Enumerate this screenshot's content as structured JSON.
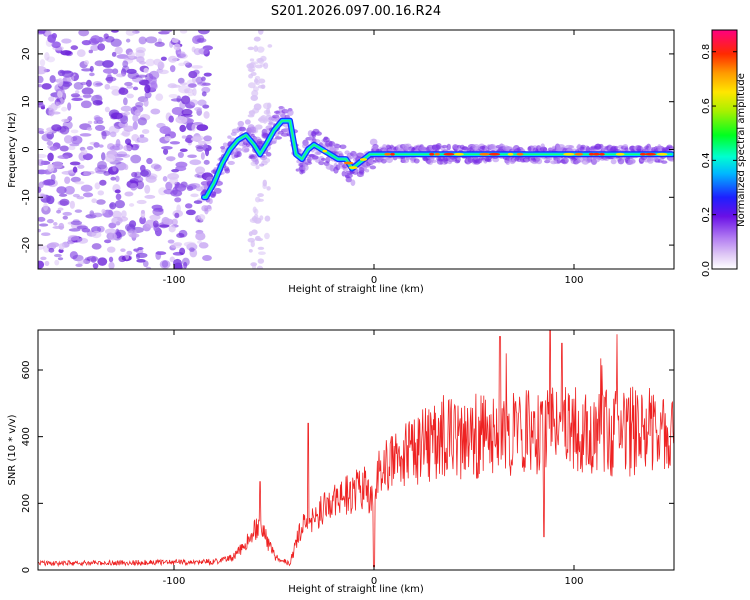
{
  "title": "S201.2026.097.00.16.R24",
  "chart_data": [
    {
      "type": "heatmap",
      "xlabel": "Height of straight line (km)",
      "ylabel": "Frequency (Hz)",
      "xlim": [
        -168,
        150
      ],
      "ylim": [
        -25,
        25
      ],
      "x_ticks": [
        -100,
        0,
        100
      ],
      "x_tick_labels": [
        "-100",
        "0",
        "100"
      ],
      "y_ticks": [
        -20,
        -10,
        0,
        10,
        20
      ],
      "y_tick_labels": [
        "-20",
        "-10",
        "0",
        "10",
        "20"
      ],
      "colorbar": {
        "label": "Normalized spectral amplitude",
        "range": [
          0,
          0.88
        ],
        "ticks": [
          0,
          0.2,
          0.4,
          0.6,
          0.8
        ],
        "tick_labels": [
          "0.0",
          "0.2",
          "0.4",
          "0.6",
          "0.8"
        ]
      },
      "ridge": {
        "x": [
          -84,
          -80,
          -76,
          -72,
          -68,
          -64,
          -60,
          -57,
          -54,
          -50,
          -46,
          -42,
          -39,
          -36,
          -33,
          -30,
          -26,
          -22,
          -18,
          -14,
          -11,
          -8,
          -5,
          -2,
          2,
          8,
          20,
          40,
          60,
          80,
          100,
          120,
          148
        ],
        "frequency": [
          -10,
          -7,
          -3,
          0,
          2,
          3,
          1,
          -1,
          1,
          4,
          6,
          6,
          -1,
          -2,
          0,
          1,
          0,
          -1,
          -2,
          -2,
          -4,
          -3,
          -2,
          -1,
          -1,
          -1,
          -1,
          -1,
          -1,
          -1,
          -1,
          -1,
          -1
        ]
      }
    },
    {
      "type": "line",
      "xlabel": "Height of straight line (km)",
      "ylabel": "SNR (10 * v/v)",
      "xlim": [
        -168,
        150
      ],
      "ylim": [
        0,
        720
      ],
      "x_ticks": [
        -100,
        0,
        100
      ],
      "x_tick_labels": [
        "-100",
        "0",
        "100"
      ],
      "y_ticks": [
        0,
        200,
        400,
        600
      ],
      "y_tick_labels": [
        "0",
        "200",
        "400",
        "600"
      ],
      "series": [
        {
          "name": "SNR",
          "color": "#ee2222",
          "envelope": {
            "x": [
              -168,
              -120,
              -80,
              -70,
              -65,
              -61,
              -57,
              -53,
              -48,
              -42,
              -40,
              -38,
              -35,
              -30,
              -20,
              -10,
              -5,
              -2,
              0,
              3,
              10,
              20,
              30,
              40,
              60,
              80,
              100,
              120,
              150
            ],
            "y": [
              20,
              22,
              25,
              40,
              70,
              110,
              140,
              80,
              30,
              20,
              60,
              100,
              140,
              160,
              210,
              230,
              250,
              200,
              230,
              290,
              330,
              360,
              380,
              390,
              410,
              420,
              420,
              410,
              410
            ]
          },
          "spikes": [
            {
              "x": -57,
              "y": 265
            },
            {
              "x": -33,
              "y": 440
            },
            {
              "x": 0,
              "y": 10
            },
            {
              "x": 63,
              "y": 700
            },
            {
              "x": 88,
              "y": 720
            },
            {
              "x": 94,
              "y": 680
            },
            {
              "x": 85,
              "y": 100
            }
          ]
        }
      ]
    }
  ]
}
